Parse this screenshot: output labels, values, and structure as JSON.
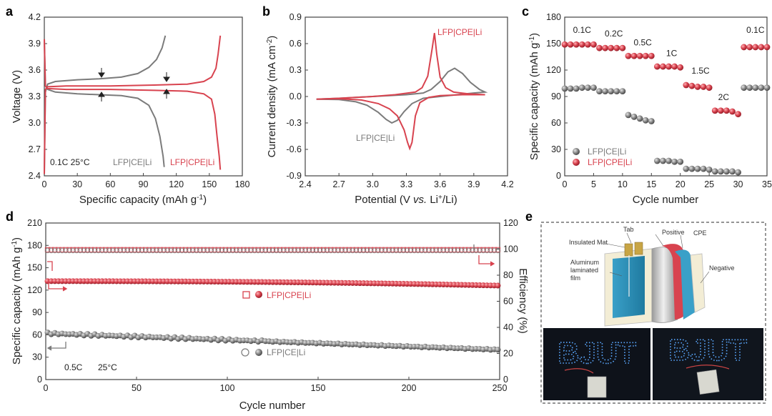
{
  "colors": {
    "red": "#d8434f",
    "gray": "#7b7b7b",
    "frame": "#444444",
    "led": "#5aa8ff"
  },
  "panels": {
    "a": "a",
    "b": "b",
    "c": "c",
    "d": "d",
    "e": "e"
  },
  "chart_data": [
    {
      "id": "a",
      "type": "line",
      "xlabel": "Specific capacity (mAh g",
      "xlabel_sup": "-1",
      "xlabel_end": ")",
      "ylabel": "Voltage (V)",
      "xlim": [
        0,
        180
      ],
      "ylim": [
        2.4,
        4.2
      ],
      "xticks": [
        0,
        30,
        60,
        90,
        120,
        150,
        180
      ],
      "yticks": [
        "2.4",
        "2.7",
        "3.0",
        "3.3",
        "3.6",
        "3.9",
        "4.2"
      ],
      "condition": "0.1C 25°C",
      "series": [
        {
          "name": "LFP|CE|Li",
          "color": "#7b7b7b",
          "charge": [
            [
              0,
              2.42
            ],
            [
              1,
              3.35
            ],
            [
              3,
              3.44
            ],
            [
              10,
              3.47
            ],
            [
              30,
              3.49
            ],
            [
              50,
              3.5
            ],
            [
              70,
              3.52
            ],
            [
              85,
              3.56
            ],
            [
              95,
              3.63
            ],
            [
              102,
              3.72
            ],
            [
              107,
              3.85
            ],
            [
              110,
              3.99
            ]
          ],
          "discharge": [
            [
              0,
              3.95
            ],
            [
              1,
              3.42
            ],
            [
              3,
              3.38
            ],
            [
              10,
              3.35
            ],
            [
              30,
              3.33
            ],
            [
              50,
              3.32
            ],
            [
              70,
              3.31
            ],
            [
              85,
              3.28
            ],
            [
              95,
              3.2
            ],
            [
              101,
              3.05
            ],
            [
              105,
              2.85
            ],
            [
              108,
              2.62
            ],
            [
              109,
              2.5
            ]
          ]
        },
        {
          "name": "LFP|CPE|Li",
          "color": "#d8434f",
          "charge": [
            [
              0,
              2.42
            ],
            [
              1,
              3.38
            ],
            [
              3,
              3.41
            ],
            [
              20,
              3.42
            ],
            [
              60,
              3.42
            ],
            [
              100,
              3.43
            ],
            [
              130,
              3.44
            ],
            [
              145,
              3.47
            ],
            [
              152,
              3.52
            ],
            [
              156,
              3.62
            ],
            [
              158,
              3.78
            ],
            [
              160,
              3.99
            ]
          ],
          "discharge": [
            [
              0,
              3.95
            ],
            [
              1,
              3.42
            ],
            [
              3,
              3.39
            ],
            [
              20,
              3.38
            ],
            [
              60,
              3.38
            ],
            [
              100,
              3.37
            ],
            [
              130,
              3.36
            ],
            [
              145,
              3.33
            ],
            [
              152,
              3.27
            ],
            [
              155,
              3.1
            ],
            [
              157,
              2.85
            ],
            [
              159,
              2.62
            ],
            [
              160,
              2.47
            ]
          ]
        }
      ]
    },
    {
      "id": "b",
      "type": "line",
      "xlabel_pre": "Potential (V ",
      "xlabel_it": "vs.",
      "xlabel_mid": " Li",
      "xlabel_sup": "+",
      "xlabel_end": "/Li)",
      "ylabel_pre": "Current density (mA cm",
      "ylabel_sup": "-2",
      "ylabel_end": ")",
      "xlim": [
        2.4,
        4.2
      ],
      "ylim": [
        -0.9,
        0.9
      ],
      "xticks": [
        "2.4",
        "2.7",
        "3.0",
        "3.3",
        "3.6",
        "3.9",
        "4.2"
      ],
      "yticks": [
        "-0.9",
        "-0.6",
        "-0.3",
        "0.0",
        "0.3",
        "0.6",
        "0.9"
      ],
      "series": [
        {
          "name": "LFP|CE|Li",
          "color": "#7b7b7b",
          "points": [
            [
              2.5,
              -0.03
            ],
            [
              2.7,
              -0.035
            ],
            [
              2.85,
              -0.06
            ],
            [
              2.95,
              -0.1
            ],
            [
              3.05,
              -0.18
            ],
            [
              3.12,
              -0.26
            ],
            [
              3.17,
              -0.3
            ],
            [
              3.22,
              -0.27
            ],
            [
              3.28,
              -0.17
            ],
            [
              3.35,
              -0.08
            ],
            [
              3.45,
              -0.02
            ],
            [
              3.6,
              0.0
            ],
            [
              3.75,
              0.02
            ],
            [
              3.9,
              0.04
            ],
            [
              4.0,
              0.05
            ],
            [
              3.95,
              0.08
            ],
            [
              3.87,
              0.16
            ],
            [
              3.8,
              0.26
            ],
            [
              3.73,
              0.32
            ],
            [
              3.67,
              0.28
            ],
            [
              3.6,
              0.17
            ],
            [
              3.52,
              0.08
            ],
            [
              3.45,
              0.04
            ],
            [
              3.3,
              0.02
            ],
            [
              3.0,
              0.0
            ],
            [
              2.7,
              -0.02
            ],
            [
              2.5,
              -0.03
            ]
          ]
        },
        {
          "name": "LFP|CPE|Li",
          "color": "#d8434f",
          "points": [
            [
              2.5,
              -0.03
            ],
            [
              2.7,
              -0.025
            ],
            [
              2.9,
              -0.04
            ],
            [
              3.05,
              -0.08
            ],
            [
              3.15,
              -0.14
            ],
            [
              3.22,
              -0.22
            ],
            [
              3.28,
              -0.38
            ],
            [
              3.31,
              -0.52
            ],
            [
              3.33,
              -0.59
            ],
            [
              3.35,
              -0.52
            ],
            [
              3.38,
              -0.22
            ],
            [
              3.42,
              -0.07
            ],
            [
              3.5,
              -0.01
            ],
            [
              3.6,
              0.01
            ],
            [
              3.8,
              0.02
            ],
            [
              4.0,
              0.02
            ],
            [
              3.85,
              0.03
            ],
            [
              3.72,
              0.05
            ],
            [
              3.65,
              0.1
            ],
            [
              3.6,
              0.22
            ],
            [
              3.57,
              0.48
            ],
            [
              3.55,
              0.72
            ],
            [
              3.53,
              0.55
            ],
            [
              3.49,
              0.23
            ],
            [
              3.44,
              0.1
            ],
            [
              3.38,
              0.05
            ],
            [
              3.2,
              0.02
            ],
            [
              3.0,
              0.0
            ],
            [
              2.7,
              -0.02
            ],
            [
              2.5,
              -0.03
            ]
          ]
        }
      ]
    },
    {
      "id": "c",
      "type": "scatter",
      "xlabel": "Cycle number",
      "ylabel_pre": "Specific capacity (mAh g",
      "ylabel_sup": "-1",
      "ylabel_end": ")",
      "xlim": [
        0,
        35
      ],
      "ylim": [
        0,
        180
      ],
      "xticks": [
        0,
        5,
        10,
        15,
        20,
        25,
        30,
        35
      ],
      "yticks": [
        0,
        30,
        60,
        90,
        120,
        150,
        180
      ],
      "rate_labels": [
        {
          "text": "0.1C",
          "x": 3,
          "y": 162
        },
        {
          "text": "0.2C",
          "x": 8.5,
          "y": 158
        },
        {
          "text": "0.5C",
          "x": 13.5,
          "y": 148
        },
        {
          "text": "1C",
          "x": 18.5,
          "y": 136
        },
        {
          "text": "1.5C",
          "x": 23.5,
          "y": 116
        },
        {
          "text": "2C",
          "x": 27.5,
          "y": 86
        },
        {
          "text": "0.1C",
          "x": 33,
          "y": 162
        }
      ],
      "series": [
        {
          "name": "LFP|CE|Li",
          "color": "#7b7b7b",
          "y": [
            99,
            99,
            99,
            100,
            100,
            100,
            96,
            96,
            96,
            96,
            96,
            69,
            67,
            65,
            63,
            62,
            17,
            17,
            17,
            16,
            16,
            8,
            8,
            8,
            8,
            7,
            5,
            5,
            5,
            5,
            4,
            100,
            100,
            100,
            100,
            100
          ]
        },
        {
          "name": "LFP|CPE|Li",
          "color": "#d8434f",
          "y": [
            149,
            149,
            149,
            149,
            149,
            149,
            145,
            145,
            145,
            145,
            145,
            136,
            136,
            136,
            136,
            136,
            124,
            124,
            124,
            124,
            123,
            103,
            102,
            101,
            101,
            100,
            74,
            74,
            74,
            73,
            70,
            146,
            146,
            146,
            146,
            146
          ]
        }
      ]
    },
    {
      "id": "d",
      "type": "scatter",
      "xlabel": "Cycle number",
      "ylabel_pre": "Specific capacity (mAh g",
      "ylabel_sup": "-1",
      "ylabel_end": ")",
      "y2label": "Efficiency (%)",
      "xlim": [
        0,
        250
      ],
      "ylim": [
        0,
        210
      ],
      "y2lim": [
        0,
        120
      ],
      "xticks": [
        0,
        50,
        100,
        150,
        200,
        250
      ],
      "yticks": [
        0,
        30,
        60,
        90,
        120,
        150,
        180,
        210
      ],
      "y2ticks": [
        0,
        20,
        40,
        60,
        80,
        100,
        120
      ],
      "condition_rate": "0.5C",
      "condition_temp": "25°C",
      "series": [
        {
          "name": "LFP|CPE|Li",
          "color": "#d8434f",
          "capacity_start": 132,
          "capacity_end": 126,
          "efficiency": 99.5
        },
        {
          "name": "LFP|CE|Li",
          "color": "#7b7b7b",
          "capacity_start": 62,
          "capacity_end": 40,
          "efficiency": 99.5
        }
      ]
    }
  ],
  "panel_e": {
    "labels": {
      "tab": "Tab",
      "insulated_mat": "Insulated Mat",
      "positive": "Positive",
      "cpe": "CPE",
      "aluminum_1": "Aluminum",
      "aluminum_2": "laminated",
      "aluminum_3": "film",
      "negative": "Negative"
    },
    "led_text_left": "BJUT",
    "led_text_right": "BJUT"
  }
}
